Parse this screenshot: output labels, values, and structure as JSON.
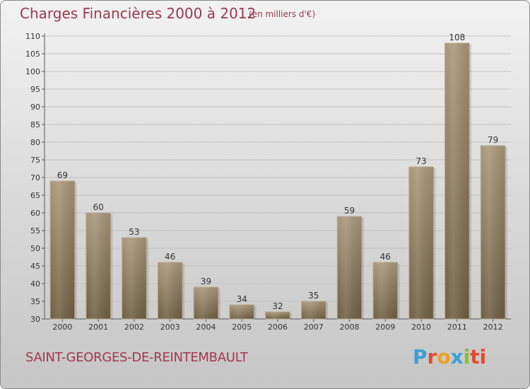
{
  "header": {
    "title": "Charges Financières 2000 à 2012",
    "subtitle": "(en milliers d'€)"
  },
  "footer": {
    "commune": "SAINT-GEORGES-DE-REINTEMBAULT",
    "logo_text": "Proxiti",
    "logo_colors": [
      "#3aa0d8",
      "#e64a2e",
      "#f0a020",
      "#3aa0d8",
      "#8cbf26",
      "#e64a2e",
      "#e64a2e"
    ]
  },
  "colors": {
    "bar_fill": "#8a7859",
    "bar_highlight": "#a89878",
    "title": "#9a3a4e"
  },
  "chart_data": {
    "type": "bar",
    "title": "Charges Financières 2000 à 2012",
    "subtitle": "(en milliers d'€)",
    "categories": [
      "2000",
      "2001",
      "2002",
      "2003",
      "2004",
      "2005",
      "2006",
      "2007",
      "2008",
      "2009",
      "2010",
      "2011",
      "2012"
    ],
    "values": [
      69,
      60,
      53,
      46,
      39,
      34,
      32,
      35,
      59,
      46,
      73,
      108,
      79
    ],
    "ylim": [
      30,
      110
    ],
    "yticks": [
      30,
      35,
      40,
      45,
      50,
      55,
      60,
      65,
      70,
      75,
      80,
      85,
      90,
      95,
      100,
      105,
      110
    ],
    "grid": true,
    "data_labels": true
  }
}
